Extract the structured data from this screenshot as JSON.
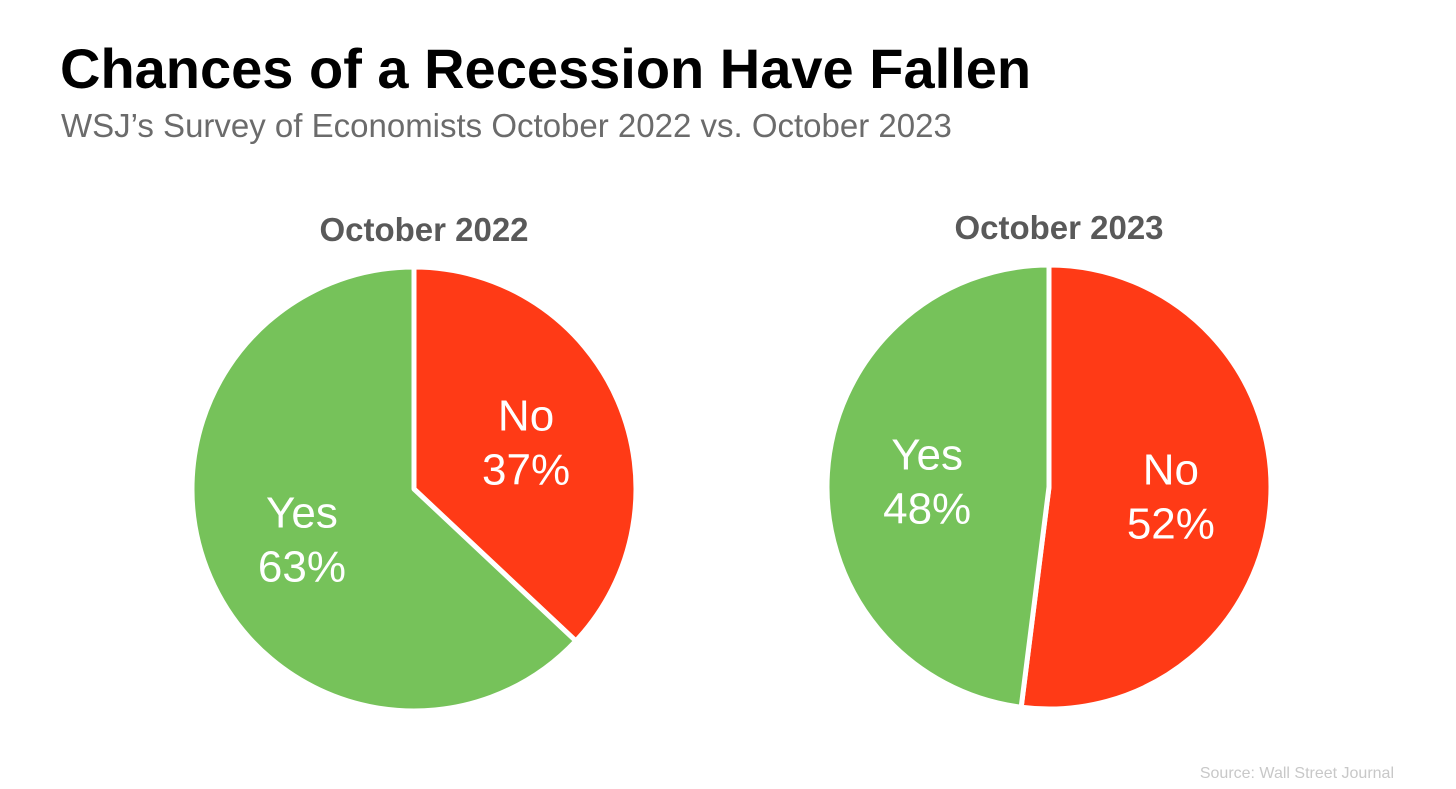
{
  "header": {
    "title": "Chances of a Recession Have Fallen",
    "subtitle": "WSJ’s Survey of Economists October 2022 vs. October 2023"
  },
  "footer": {
    "source": "Source: Wall Street Journal"
  },
  "colors": {
    "yes": "#76C25A",
    "no": "#FF3A16",
    "divider": "#ffffff"
  },
  "chart_data": [
    {
      "type": "pie",
      "title": "October 2022",
      "slices": [
        {
          "label": "No",
          "value": 37,
          "value_label": "37%",
          "color": "#FF3A16"
        },
        {
          "label": "Yes",
          "value": 63,
          "value_label": "63%",
          "color": "#76C25A"
        }
      ]
    },
    {
      "type": "pie",
      "title": "October 2023",
      "slices": [
        {
          "label": "No",
          "value": 52,
          "value_label": "52%",
          "color": "#FF3A16"
        },
        {
          "label": "Yes",
          "value": 48,
          "value_label": "48%",
          "color": "#76C25A"
        }
      ]
    }
  ]
}
